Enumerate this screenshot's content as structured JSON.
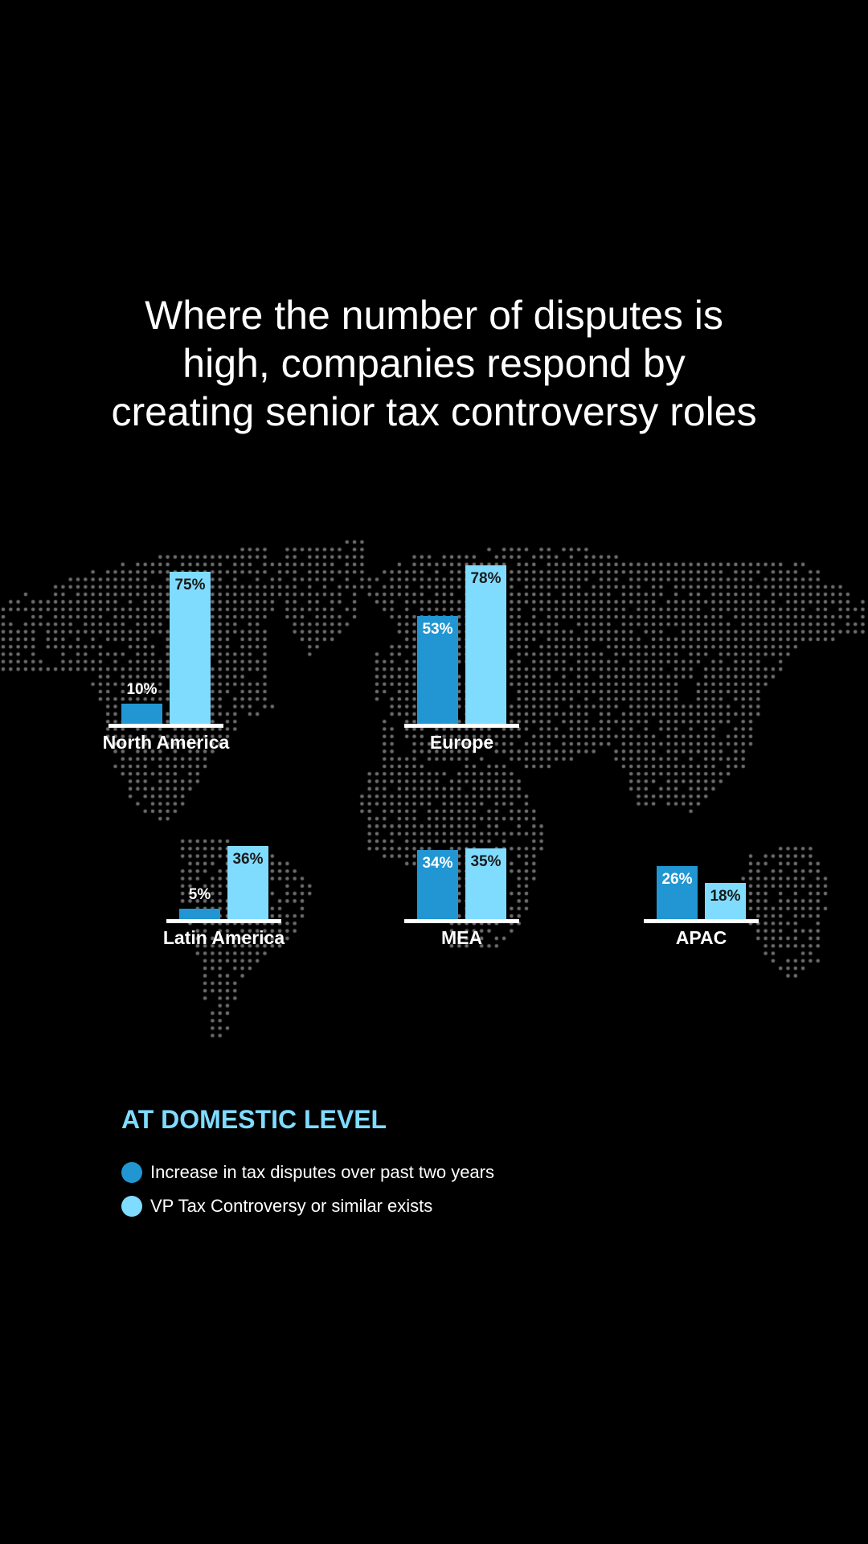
{
  "title_lines": [
    "Where the number of disputes is",
    "high, companies respond by",
    "creating senior tax controversy roles"
  ],
  "colors": {
    "series1": "#2196d3",
    "series2": "#7fdcff",
    "map_dot": "#6f6f6f",
    "baseline": "#ffffff"
  },
  "chart_data": {
    "type": "bar",
    "title": "Where the number of disputes is high, companies respond by creating senior tax controversy roles",
    "categories": [
      "North America",
      "Europe",
      "Latin America",
      "MEA",
      "APAC"
    ],
    "series": [
      {
        "name": "Increase in tax disputes over past two years",
        "values": [
          10,
          53,
          5,
          34,
          26
        ],
        "labels": [
          "10%",
          "53%",
          "5%",
          "34%",
          "26%"
        ]
      },
      {
        "name": "VP Tax Controversy or similar exists",
        "values": [
          75,
          78,
          36,
          35,
          18
        ],
        "labels": [
          "75%",
          "78%",
          "36%",
          "35%",
          "18%"
        ]
      }
    ],
    "unit": "%",
    "legend_placement": "bottom-left"
  },
  "legend": {
    "title": "AT DOMESTIC LEVEL",
    "items": [
      "Increase in tax disputes over past two years",
      "VP Tax Controversy or similar exists"
    ]
  }
}
